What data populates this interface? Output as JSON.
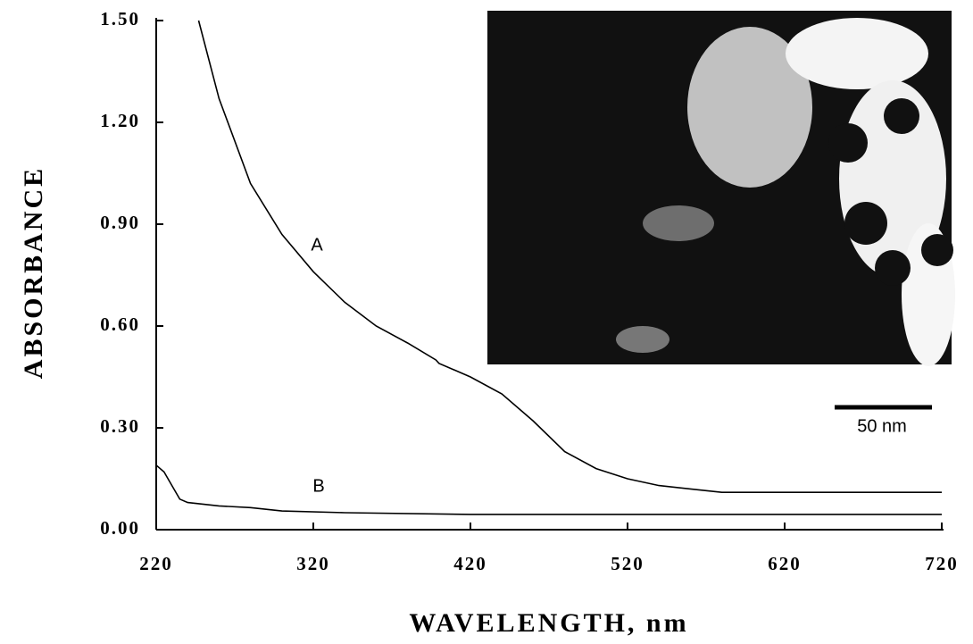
{
  "chart_data": {
    "type": "line",
    "x_label": "WAVELENGTH, nm",
    "y_label": "ABSORBANCE",
    "xlim": [
      220,
      720
    ],
    "ylim": [
      0,
      1.5
    ],
    "xticks": [
      220,
      320,
      420,
      520,
      620,
      720
    ],
    "yticks": [
      {
        "value": 0,
        "label": "0.00"
      },
      {
        "value": 0.3,
        "label": "0.30"
      },
      {
        "value": 0.6,
        "label": "0.60"
      },
      {
        "value": 0.9,
        "label": "0.90"
      },
      {
        "value": 1.2,
        "label": "1.20"
      },
      {
        "value": 1.5,
        "label": "1.50"
      }
    ],
    "series": [
      {
        "name": "A",
        "color": "#000000",
        "x": [
          247,
          260,
          280,
          300,
          320,
          340,
          360,
          380,
          398,
          400,
          420,
          440,
          460,
          480,
          500,
          520,
          540,
          560,
          580,
          620,
          660,
          720
        ],
        "values": [
          1.5,
          1.27,
          1.02,
          0.87,
          0.76,
          0.67,
          0.6,
          0.55,
          0.5,
          0.49,
          0.45,
          0.4,
          0.32,
          0.23,
          0.18,
          0.15,
          0.13,
          0.12,
          0.11,
          0.11,
          0.11,
          0.11
        ]
      },
      {
        "name": "B",
        "color": "#000000",
        "x": [
          220,
          225,
          230,
          235,
          240,
          260,
          280,
          300,
          340,
          420,
          520,
          620,
          720
        ],
        "values": [
          0.19,
          0.17,
          0.13,
          0.09,
          0.08,
          0.07,
          0.065,
          0.055,
          0.05,
          0.045,
          0.045,
          0.045,
          0.045
        ]
      }
    ],
    "inset_scale_label": "50 nm"
  }
}
